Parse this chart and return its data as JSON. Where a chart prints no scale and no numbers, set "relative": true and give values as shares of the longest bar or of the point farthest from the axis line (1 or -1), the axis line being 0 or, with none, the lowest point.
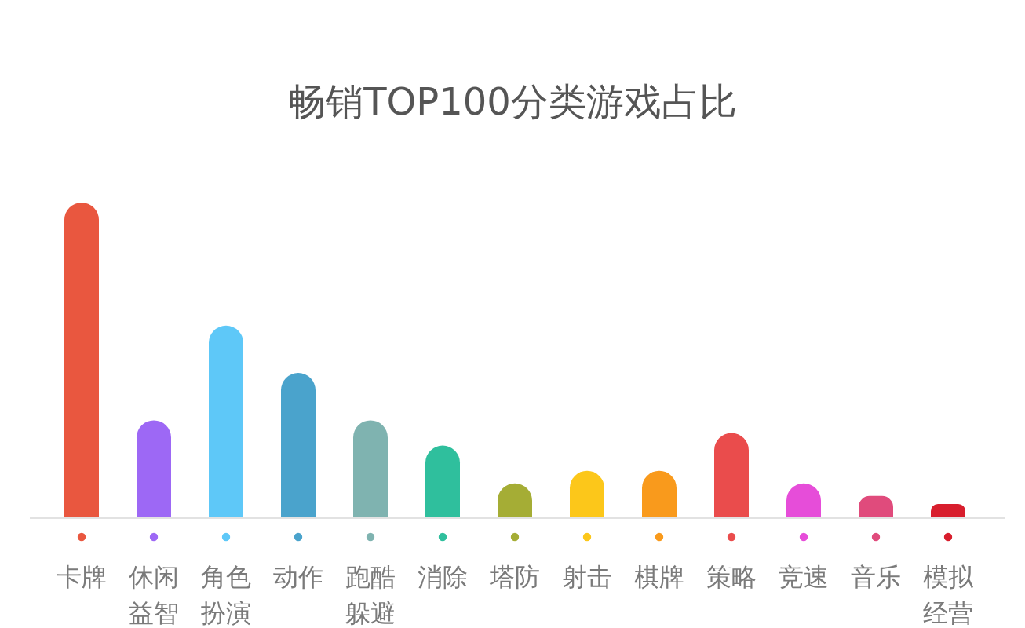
{
  "chart_data": {
    "type": "bar",
    "title": "畅销TOP100分类游戏占比",
    "categories": [
      "卡牌",
      "休闲益智",
      "角色扮演",
      "动作",
      "跑酷躲避",
      "消除",
      "塔防",
      "射击",
      "棋牌",
      "策略",
      "竞速",
      "音乐",
      "模拟经营"
    ],
    "values": [
      1,
      0.31,
      0.61,
      0.46,
      0.31,
      0.23,
      0.11,
      0.15,
      0.15,
      0.27,
      0.11,
      0.07,
      0.045
    ],
    "colors": [
      "#e9573f",
      "#9d68f5",
      "#5ec8f8",
      "#4aa3cc",
      "#7fb3b0",
      "#2fbf9d",
      "#a5ad35",
      "#fcc71a",
      "#f99a1c",
      "#ea4c4c",
      "#e64dd9",
      "#e04b7c",
      "#d81e2d"
    ],
    "relative": true
  }
}
